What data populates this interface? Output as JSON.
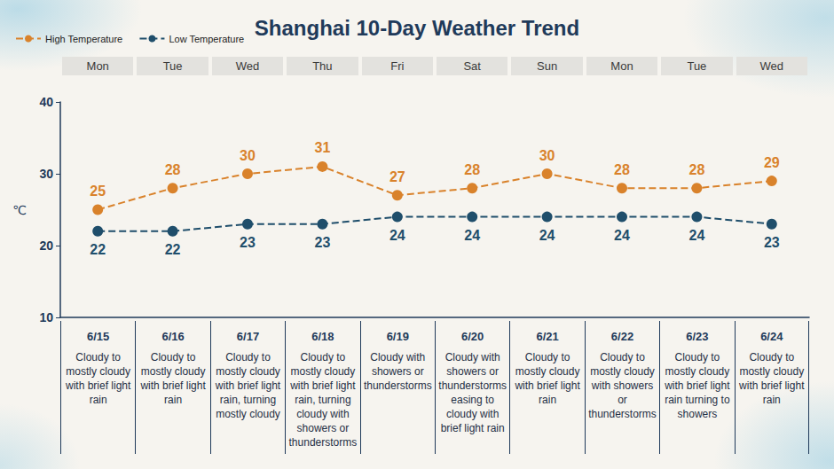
{
  "chart_data": {
    "type": "line",
    "title": "Shanghai 10-Day Weather Trend",
    "y_label": "℃",
    "categories": [
      "6/15",
      "6/16",
      "6/17",
      "6/18",
      "6/19",
      "6/20",
      "6/21",
      "6/22",
      "6/23",
      "6/24"
    ],
    "weekdays": [
      "Mon",
      "Tue",
      "Wed",
      "Thu",
      "Fri",
      "Sat",
      "Sun",
      "Mon",
      "Tue",
      "Wed"
    ],
    "descriptions": [
      "Cloudy to mostly cloudy with brief light rain",
      "Cloudy to mostly cloudy with brief light rain",
      "Cloudy to mostly cloudy with brief light rain, turning mostly cloudy",
      "Cloudy to mostly cloudy with brief light rain, turning cloudy with showers or thunderstorms",
      "Cloudy with showers or thunderstorms",
      "Cloudy with showers or thunderstorms easing to cloudy with brief light rain",
      "Cloudy to mostly cloudy with brief light rain",
      "Cloudy to mostly cloudy with showers or thunderstorms",
      "Cloudy to mostly cloudy with brief light rain turning to showers",
      "Cloudy to mostly cloudy with brief light rain"
    ],
    "series": [
      {
        "name": "High Temperature",
        "color": "#d9822b",
        "values": [
          25,
          28,
          30,
          31,
          27,
          28,
          30,
          28,
          28,
          29
        ]
      },
      {
        "name": "Low Temperature",
        "color": "#1f4e6b",
        "values": [
          22,
          22,
          23,
          23,
          24,
          24,
          24,
          24,
          24,
          23
        ]
      }
    ],
    "ylim": [
      10,
      40
    ],
    "yticks": [
      10,
      20,
      30,
      40
    ],
    "data_labels": true,
    "legend": "top-left",
    "line_style": "dashed",
    "marker": "circle",
    "grid": false
  }
}
